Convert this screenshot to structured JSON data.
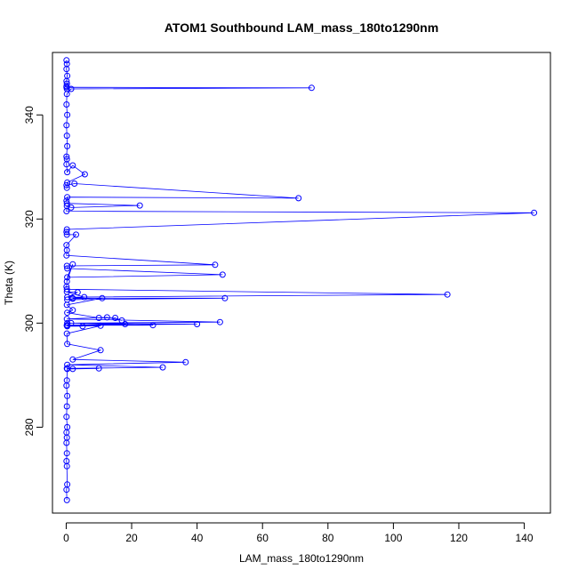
{
  "chart_data": {
    "type": "line",
    "title": "ATOM1 Southbound LAM_mass_180to1290nm",
    "xlabel": "LAM_mass_180to1290nm",
    "ylabel": "Theta (K)",
    "xlim": [
      -4.2,
      148
    ],
    "ylim": [
      263.5,
      352
    ],
    "xticks": [
      0,
      20,
      40,
      60,
      80,
      100,
      120,
      140
    ],
    "yticks": [
      280,
      300,
      320,
      340
    ],
    "grid": false,
    "legend": "none",
    "series_color": "#0000ff",
    "series": [
      {
        "marker": "open-circle",
        "x": [
          0.1,
          0.2,
          0.1,
          0.3,
          0.1,
          0.2,
          0.1,
          0.2,
          0.1,
          75.0,
          1.5,
          0.2,
          0.1,
          0.3,
          0.1,
          0.2,
          0.3,
          0.1,
          0.2,
          0.1,
          0.3,
          2.0,
          5.7,
          0.3,
          0.2,
          0.1,
          2.5,
          71.0,
          0.3,
          0.1,
          0.2,
          22.5,
          1.5,
          0.2,
          0.1,
          143.0,
          0.2,
          0.1,
          0.2,
          3.0,
          0.1,
          0.2,
          0.1,
          45.5,
          0.2,
          0.3,
          47.8,
          0.3,
          2.0,
          0.2,
          0.1,
          0.2,
          116.5,
          0.3,
          3.5,
          0.2,
          5.5,
          2.0,
          48.5,
          0.3,
          2.0,
          11.0,
          0.2,
          2.0,
          0.3,
          10.0,
          15.0,
          17.0,
          12.5,
          0.2,
          47.0,
          0.3,
          40.0,
          0.2,
          26.5,
          1.5,
          0.3,
          18.0,
          0.2,
          5.0,
          0.3,
          10.5,
          0.2,
          0.3,
          10.5,
          2.0,
          36.5,
          0.3,
          29.5,
          0.2,
          10.0,
          2.0,
          0.3,
          0.2,
          0.1,
          0.3,
          0.2,
          0.1,
          0.3,
          0.1,
          0.2,
          0.1,
          0.2,
          0.1,
          0.2,
          0.3,
          0.1,
          0.2
        ],
        "y": [
          350.5,
          349.8,
          348.8,
          347.5,
          346.5,
          346.0,
          345.5,
          345.0,
          345.3,
          345.2,
          345.0,
          344.0,
          342.0,
          340.0,
          338.0,
          336.0,
          334.0,
          332.0,
          331.5,
          330.5,
          329.0,
          330.3,
          328.6,
          327.0,
          326.0,
          326.5,
          326.8,
          324.0,
          324.2,
          323.5,
          323.0,
          322.6,
          322.2,
          322.5,
          321.5,
          321.2,
          318.0,
          317.5,
          317.0,
          317.0,
          315.0,
          314.0,
          313.0,
          311.2,
          311.0,
          310.5,
          309.3,
          308.8,
          311.3,
          308.0,
          307.0,
          306.5,
          305.5,
          305.0,
          305.9,
          306.0,
          305.0,
          304.8,
          304.8,
          304.5,
          304.7,
          304.8,
          303.5,
          302.5,
          302.0,
          301.0,
          301.0,
          300.5,
          301.1,
          300.8,
          300.2,
          300.0,
          299.8,
          299.6,
          299.6,
          300.0,
          299.6,
          299.8,
          299.5,
          299.4,
          299.4,
          299.5,
          298.0,
          296.0,
          294.8,
          293.0,
          292.5,
          292.0,
          291.5,
          291.3,
          291.3,
          291.2,
          291.2,
          289.0,
          288.0,
          286.0,
          284.0,
          282.0,
          280.0,
          279.0,
          278.0,
          277.0,
          275.0,
          273.5,
          272.5,
          269.0,
          268.0,
          266.0
        ]
      }
    ]
  }
}
